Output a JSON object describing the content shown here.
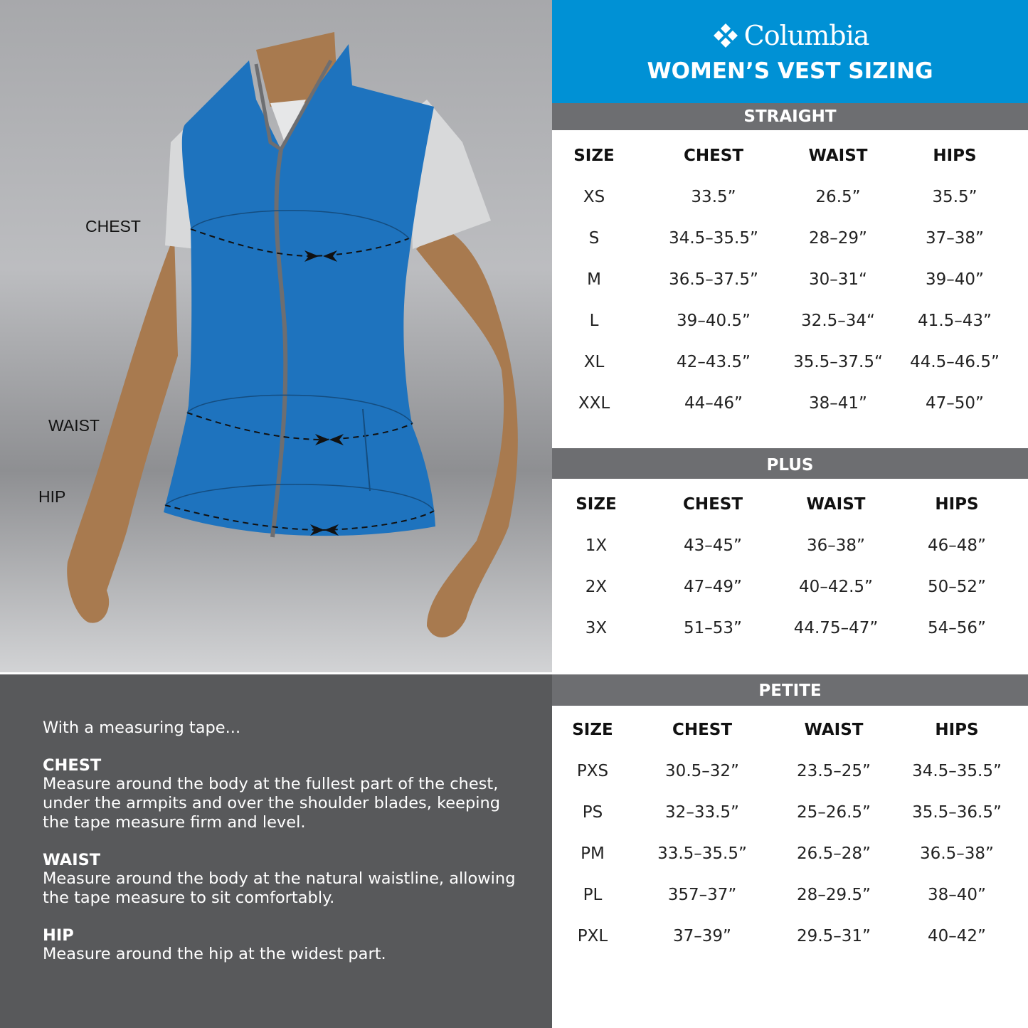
{
  "figure": {
    "labels": {
      "chest": "CHEST",
      "waist": "WAIST",
      "hip": "HIP"
    }
  },
  "instructions": {
    "intro": "With a measuring tape...",
    "items": [
      {
        "title": "CHEST",
        "text": "Measure around the body at the fullest part of the chest, under the armpits and over the shoulder blades, keeping the tape measure firm and level."
      },
      {
        "title": "WAIST",
        "text": "Measure around the body at the natural waistline, allowing the tape measure to sit comfortably."
      },
      {
        "title": "HIP",
        "text": "Measure around the hip at the widest part."
      }
    ]
  },
  "header": {
    "brand": "Columbia",
    "logo_icon": "columbia-diamond-logo",
    "title": "WOMEN’S VEST SIZING"
  },
  "colors": {
    "brand_blue": "#0091d5",
    "section_bar": "#6d6e71",
    "vest_blue": "#1e73be",
    "panel_dark": "#58595b"
  },
  "tables": {
    "straight": {
      "label": "STRAIGHT",
      "columns": [
        "SIZE",
        "CHEST",
        "WAIST",
        "HIPS"
      ],
      "rows": [
        [
          "XS",
          "33.5”",
          "26.5”",
          "35.5”"
        ],
        [
          "S",
          "34.5–35.5”",
          "28–29”",
          "37–38”"
        ],
        [
          "M",
          "36.5–37.5”",
          "30–31“",
          "39–40”"
        ],
        [
          "L",
          "39–40.5”",
          "32.5–34“",
          "41.5–43”"
        ],
        [
          "XL",
          "42–43.5”",
          "35.5–37.5“",
          "44.5–46.5”"
        ],
        [
          "XXL",
          "44–46”",
          "38–41”",
          "47–50”"
        ]
      ]
    },
    "plus": {
      "label": "PLUS",
      "columns": [
        "SIZE",
        "CHEST",
        "WAIST",
        "HIPS"
      ],
      "rows": [
        [
          "1X",
          "43–45”",
          "36–38”",
          "46–48”"
        ],
        [
          "2X",
          "47–49”",
          "40–42.5”",
          "50–52”"
        ],
        [
          "3X",
          "51–53”",
          "44.75–47”",
          "54–56”"
        ]
      ]
    },
    "petite": {
      "label": "PETITE",
      "columns": [
        "SIZE",
        "CHEST",
        "WAIST",
        "HIPS"
      ],
      "rows": [
        [
          "PXS",
          "30.5–32”",
          "23.5–25”",
          "34.5–35.5”"
        ],
        [
          "PS",
          "32–33.5”",
          "25–26.5”",
          "35.5–36.5”"
        ],
        [
          "PM",
          "33.5–35.5”",
          "26.5–28”",
          "36.5–38”"
        ],
        [
          "PL",
          "357–37”",
          "28–29.5”",
          "38–40”"
        ],
        [
          "PXL",
          "37–39”",
          "29.5–31”",
          "40–42”"
        ]
      ]
    }
  }
}
